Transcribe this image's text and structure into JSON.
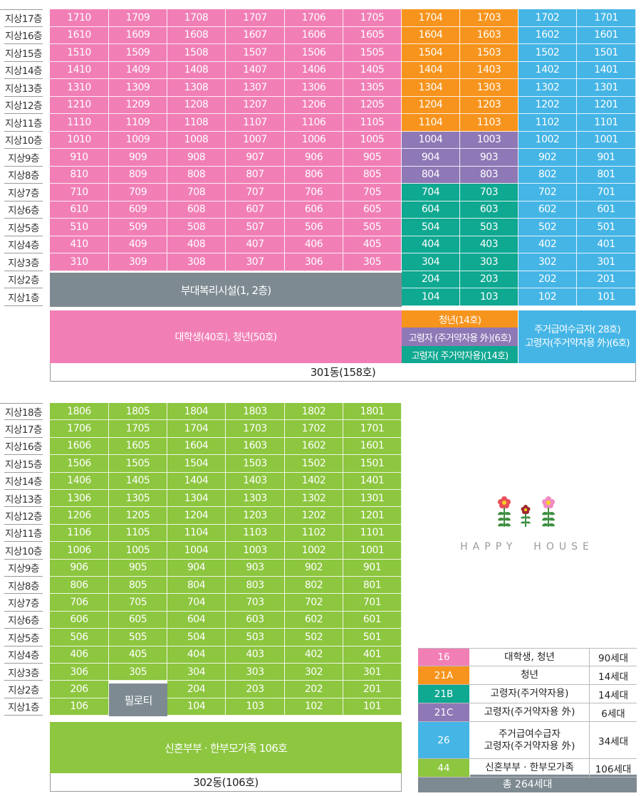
{
  "colors": {
    "pink": "#F17FB6",
    "orange": "#F7941D",
    "blue": "#45B5E6",
    "purple": "#8F78B6",
    "teal": "#0FA891",
    "green": "#8DC63F",
    "gray": "#7E8A92"
  },
  "b301": {
    "floors": [
      "지상17층",
      "지상16층",
      "지상15층",
      "지상14층",
      "지상13층",
      "지상12층",
      "지상11층",
      "지상10층",
      "지상9층",
      "지상8층",
      "지상7층",
      "지상6층",
      "지상5층",
      "지상4층",
      "지상3층",
      "지상2층",
      "지상1층"
    ],
    "facility": "부대복리시설(1, 2층)",
    "label_pink": "대학생(40호), 청년(50호)",
    "label_orange": "청년(14호)",
    "label_purple": "고령자 (주거약자용 外)(6호)",
    "label_teal": "고령자( 주거약자용)(14호)",
    "label_blue_1": "주거급여수급자( 28호)",
    "label_blue_2": "고령자(주거약자용  外)(6호)",
    "title": "301동(158호)"
  },
  "b302": {
    "floors": [
      "지상18층",
      "지상17층",
      "지상16층",
      "지상15층",
      "지상14층",
      "지상13층",
      "지상12층",
      "지상11층",
      "지상10층",
      "지상9층",
      "지상8층",
      "지상7층",
      "지상6층",
      "지상5층",
      "지상4층",
      "지상3층",
      "지상2층",
      "지상1층"
    ],
    "piloti": "필로티",
    "label": "신혼부부 · 한부모가족 106호",
    "title": "302동(106호)"
  },
  "brand": "HAPPY  HOUSE",
  "legend": {
    "rows": [
      {
        "code": "16",
        "desc": "대학생, 청년",
        "count": "90세대",
        "color": "#F17FB6"
      },
      {
        "code": "21A",
        "desc": "청년",
        "count": "14세대",
        "color": "#F7941D"
      },
      {
        "code": "21B",
        "desc": "고령자(주거약자용)",
        "count": "14세대",
        "color": "#0FA891"
      },
      {
        "code": "21C",
        "desc": "고령자(주거약자용 外)",
        "count": "6세대",
        "color": "#8F78B6"
      },
      {
        "code": "26",
        "desc1": "주거급여수급자",
        "desc2": "고령자(주거약자용 外)",
        "count": "34세대",
        "color": "#45B5E6"
      },
      {
        "code": "44",
        "desc": "신혼부부 · 한부모가족",
        "count": "106세대",
        "color": "#8DC63F"
      }
    ],
    "total": "총 264세대"
  }
}
